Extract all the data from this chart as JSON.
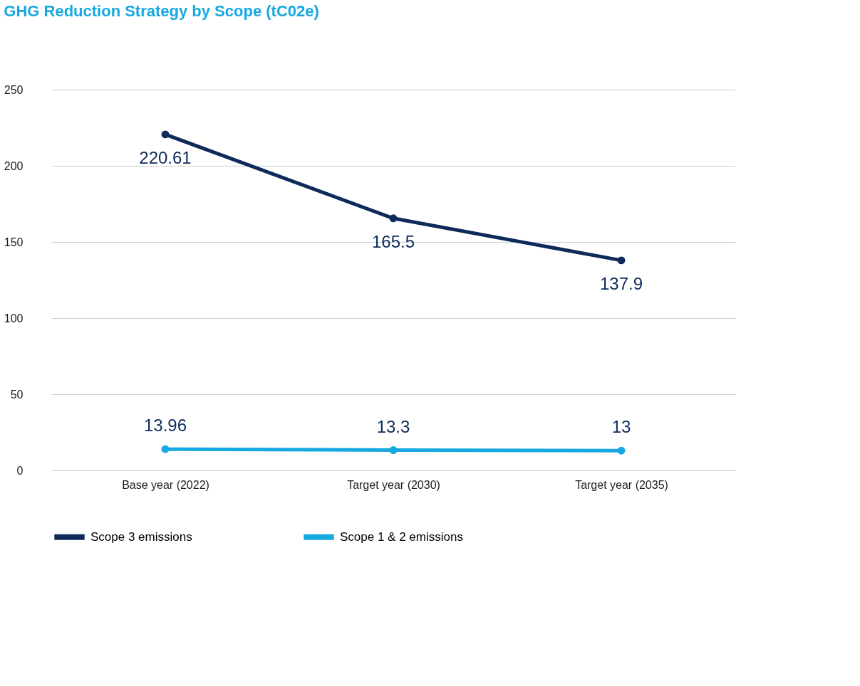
{
  "chart_data": {
    "type": "line",
    "title": "GHG Reduction Strategy by Scope (tC02e)",
    "categories": [
      "Base year (2022)",
      "Target year (2030)",
      "Target year (2035)"
    ],
    "series": [
      {
        "name": "Scope 3 emissions",
        "color": "#0e2a5a",
        "values": [
          220.61,
          165.5,
          137.9
        ]
      },
      {
        "name": "Scope 1 & 2 emissions",
        "color": "#16a8e0",
        "values": [
          13.96,
          13.3,
          13
        ]
      }
    ],
    "ylim": [
      0,
      250
    ],
    "yticks": [
      0,
      50,
      100,
      150,
      200,
      250
    ],
    "grid": "y",
    "legend": "bottom",
    "marker": "circle",
    "line_style": "solid",
    "data_labels": true
  }
}
